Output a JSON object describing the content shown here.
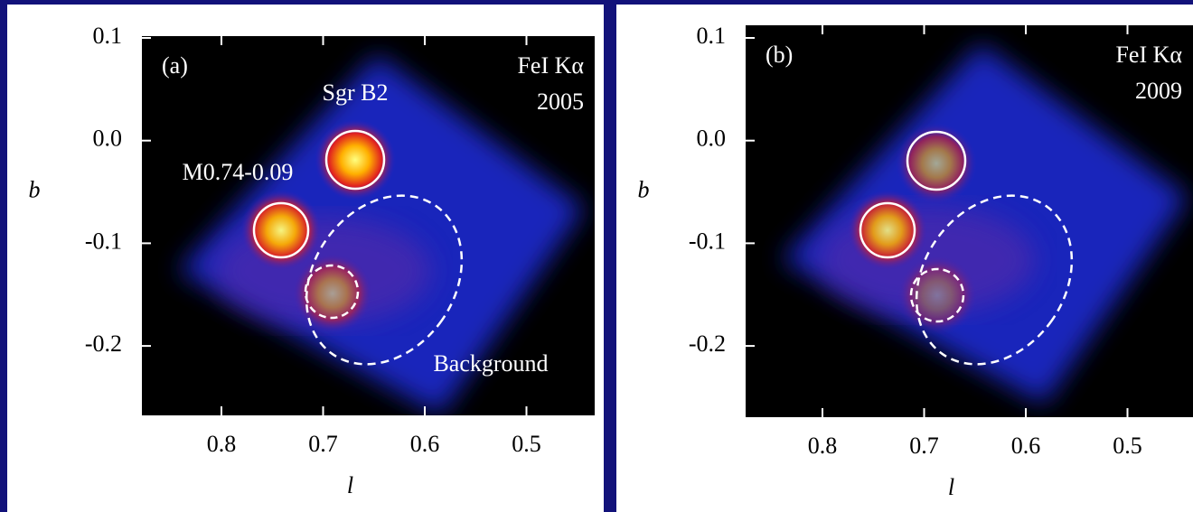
{
  "panels": [
    {
      "label": "(a)",
      "line": "FeI Kα",
      "year": "2005",
      "annotations": [
        "Sgr B2",
        "M0.74-0.09",
        "Background"
      ],
      "x_label": "l",
      "y_label": "b",
      "xticks": [
        0.8,
        0.7,
        0.6,
        0.5
      ],
      "yticks": [
        0.1,
        {
          "value": 0,
          "label": "0.0"
        },
        -0.1,
        -0.2
      ]
    },
    {
      "label": "(b)",
      "line": "FeI Kα",
      "year": "2009",
      "x_label": "l",
      "y_label": "b",
      "xticks": [
        0.8,
        0.7,
        0.6,
        0.5
      ],
      "yticks": [
        0.1,
        {
          "value": 0,
          "label": "0.0"
        },
        -0.1,
        -0.2
      ]
    }
  ]
}
